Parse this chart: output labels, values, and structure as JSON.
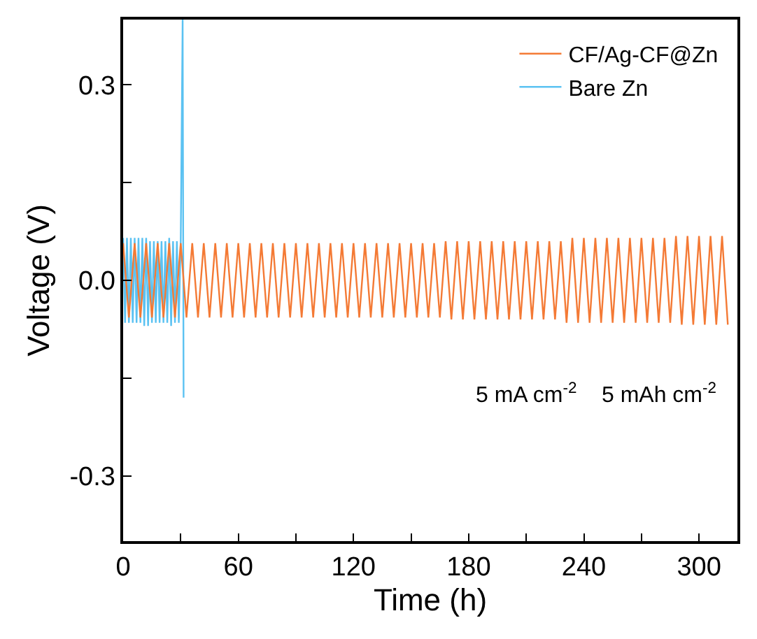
{
  "chart_data": {
    "type": "line",
    "xlabel": "Time (h)",
    "ylabel": "Voltage (V)",
    "xlim": [
      0,
      320
    ],
    "ylim": [
      -0.4,
      0.4
    ],
    "xticks": [
      0,
      {
        "value": 30,
        "label": null
      },
      60,
      {
        "value": 90,
        "label": null
      },
      120,
      {
        "value": 150,
        "label": null
      },
      180,
      {
        "value": 210,
        "label": null
      },
      240,
      {
        "value": 270,
        "label": null
      },
      300
    ],
    "yticks": [
      {
        "value": -0.3,
        "label": "-0.3"
      },
      {
        "value": -0.15,
        "label": null
      },
      {
        "value": 0,
        "label": "0.0"
      },
      {
        "value": 0.15,
        "label": null
      },
      {
        "value": 0.3,
        "label": "0.3"
      }
    ],
    "grid": false,
    "legend": "top right",
    "marker": "none",
    "line_style": "solid",
    "annotations": [
      "5 mA cm$^{-2}$    5 mAh cm$^{-2}$"
    ],
    "series": [
      {
        "name": "CF/Ag-CF@Zn",
        "color": "#f47a35",
        "x": [
          0,
          3,
          6,
          9,
          12,
          15,
          18,
          21,
          24,
          27,
          30,
          33,
          36,
          39,
          42,
          45,
          48,
          51,
          54,
          57,
          60,
          63,
          66,
          69,
          72,
          75,
          78,
          81,
          84,
          87,
          90,
          93,
          96,
          99,
          102,
          105,
          108,
          111,
          114,
          117,
          120,
          123,
          126,
          129,
          132,
          135,
          138,
          141,
          144,
          147,
          150,
          153,
          156,
          159,
          162,
          165,
          168,
          171,
          174,
          177,
          180,
          183,
          186,
          189,
          192,
          195,
          198,
          201,
          204,
          207,
          210,
          213,
          216,
          219,
          222,
          225,
          228,
          231,
          234,
          237,
          240,
          243,
          246,
          249,
          252,
          255,
          258,
          261,
          264,
          267,
          270,
          273,
          276,
          279,
          282,
          285,
          288,
          291,
          294,
          297,
          300,
          303,
          306,
          309,
          312,
          315
        ],
        "values": [
          0.057,
          -0.057,
          0.057,
          -0.057,
          0.057,
          -0.057,
          0.057,
          -0.057,
          0.057,
          -0.057,
          0.057,
          -0.057,
          0.057,
          -0.057,
          0.057,
          -0.057,
          0.057,
          -0.057,
          0.057,
          -0.057,
          0.057,
          -0.057,
          0.057,
          -0.057,
          0.057,
          -0.057,
          0.057,
          -0.057,
          0.057,
          -0.057,
          0.057,
          -0.057,
          0.057,
          -0.057,
          0.057,
          -0.057,
          0.057,
          -0.057,
          0.057,
          -0.057,
          0.057,
          -0.057,
          0.057,
          -0.057,
          0.057,
          -0.057,
          0.057,
          -0.057,
          0.057,
          -0.057,
          0.057,
          -0.057,
          0.057,
          -0.057,
          0.057,
          -0.057,
          0.06,
          -0.06,
          0.06,
          -0.06,
          0.06,
          -0.06,
          0.06,
          -0.06,
          0.06,
          -0.06,
          0.06,
          -0.06,
          0.06,
          -0.06,
          0.06,
          -0.06,
          0.06,
          -0.06,
          0.06,
          -0.06,
          0.06,
          -0.065,
          0.065,
          -0.065,
          0.065,
          -0.065,
          0.065,
          -0.065,
          0.065,
          -0.065,
          0.065,
          -0.065,
          0.065,
          -0.065,
          0.065,
          -0.065,
          0.065,
          -0.065,
          0.065,
          -0.065,
          0.068,
          -0.068,
          0.068,
          -0.068,
          0.068,
          -0.068,
          0.068,
          -0.068,
          0.068,
          -0.068
        ]
      },
      {
        "name": "Bare Zn",
        "color": "#5bc2f2",
        "x": [
          0,
          1,
          2,
          3,
          4,
          5,
          6,
          7,
          8,
          9,
          10,
          11,
          12,
          13,
          14,
          15,
          16,
          17,
          18,
          19,
          20,
          21,
          22,
          23,
          24,
          25,
          26,
          27,
          28,
          29,
          30,
          31,
          31.5
        ],
        "values": [
          0.065,
          -0.065,
          0.065,
          -0.065,
          0.065,
          -0.065,
          0.065,
          -0.065,
          0.065,
          -0.065,
          0.065,
          -0.07,
          0.065,
          -0.07,
          0.06,
          -0.065,
          0.06,
          -0.065,
          0.06,
          -0.065,
          0.06,
          -0.065,
          0.06,
          -0.065,
          0.065,
          -0.07,
          0.06,
          -0.065,
          0.06,
          -0.065,
          0.06,
          0.4,
          -0.18
        ]
      }
    ]
  }
}
